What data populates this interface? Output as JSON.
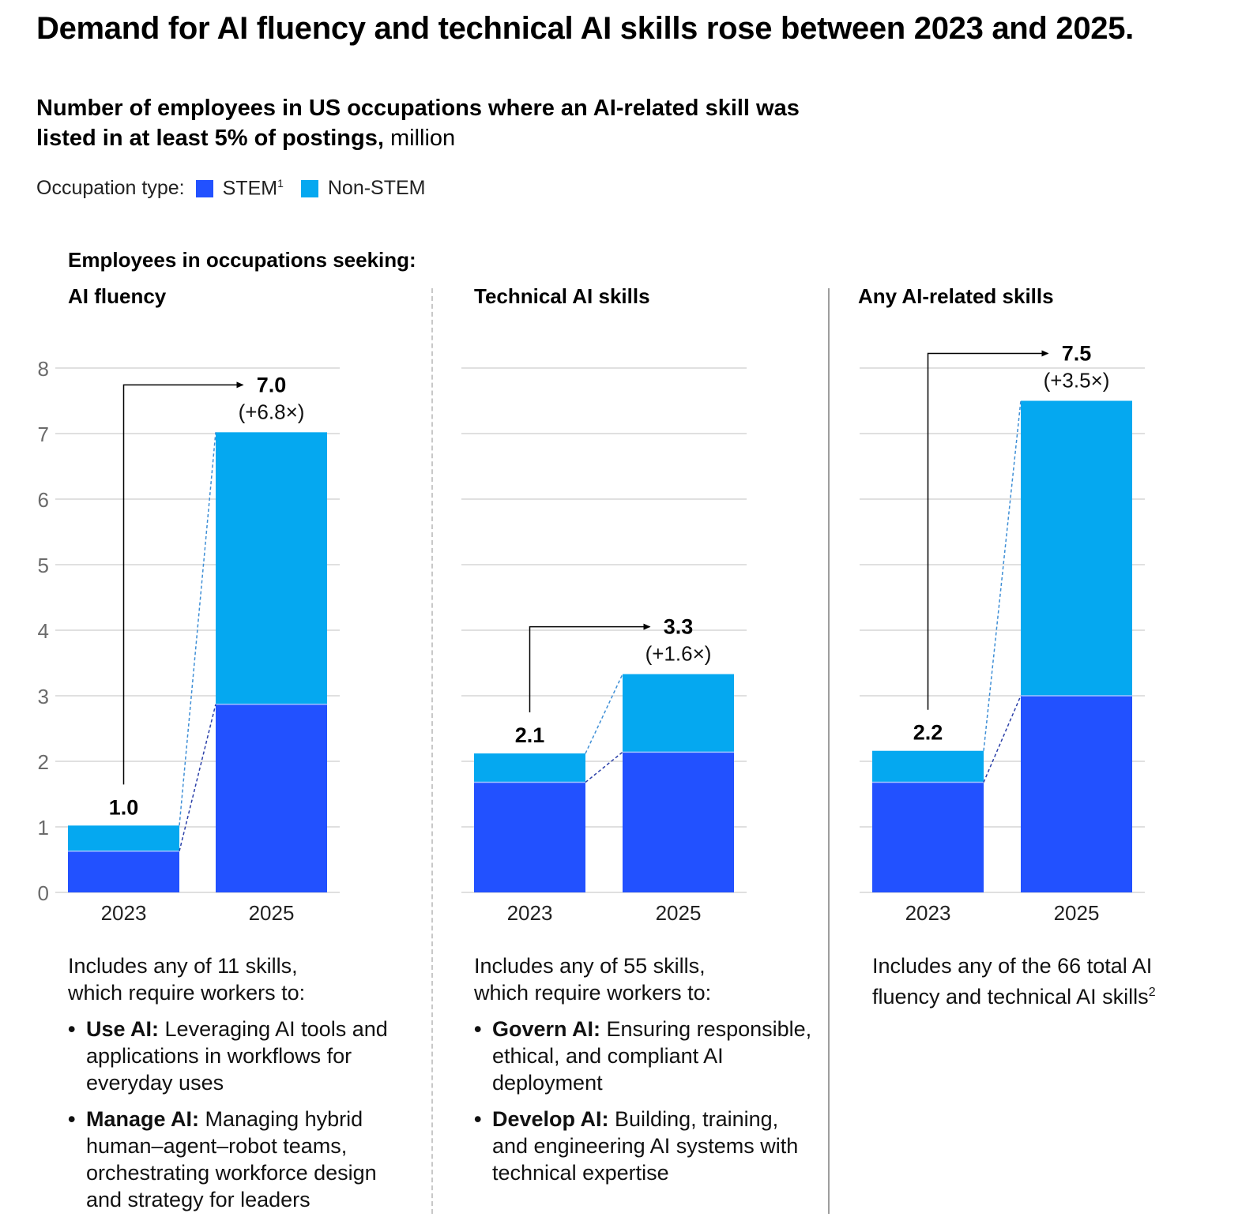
{
  "title": "Demand for AI fluency and technical AI skills rose between 2023 and 2025.",
  "subtitle": {
    "bold": "Number of employees in US occupations where an AI-related skill was listed in at least 5% of postings,",
    "unit": " million"
  },
  "legend": {
    "label": "Occupation type:",
    "items": [
      {
        "name": "STEM",
        "sup": "1",
        "color": "#2251FF"
      },
      {
        "name": "Non-STEM",
        "sup": "",
        "color": "#05A8F0"
      }
    ]
  },
  "section_label": "Employees in occupations seeking:",
  "panels": [
    {
      "title": "AI fluency",
      "note_intro": "Includes any of 11 skills, which require workers to:",
      "bullets": [
        {
          "bold": "Use AI:",
          "text": " Leveraging AI tools and applications in workflows for everyday uses"
        },
        {
          "bold": "Manage AI:",
          "text": " Managing hybrid human–agent–robot teams, orchestrating workforce design and strategy for leaders"
        }
      ]
    },
    {
      "title": "Technical AI skills",
      "note_intro": "Includes any of 55 skills, which require workers to:",
      "bullets": [
        {
          "bold": "Govern AI:",
          "text": " Ensuring responsible, ethical, and compliant AI deployment"
        },
        {
          "bold": "Develop AI:",
          "text": " Building, training, and engineering AI systems with technical expertise"
        }
      ]
    },
    {
      "title": "Any AI-related skills",
      "note_intro": "Includes any of the 66 total AI fluency and technical AI skills",
      "note_sup": "2",
      "bullets": []
    }
  ],
  "chart_data": {
    "type": "bar",
    "stacked": true,
    "title": "Number of employees in US occupations where an AI-related skill was listed in at least 5% of postings",
    "ylabel": "million",
    "ylim": [
      0,
      8
    ],
    "yticks": [
      0,
      1,
      2,
      3,
      4,
      5,
      6,
      7,
      8
    ],
    "grid": true,
    "legend_position": "top-left",
    "categories": [
      "2023",
      "2025"
    ],
    "panels": [
      {
        "name": "AI fluency",
        "series": [
          {
            "name": "STEM",
            "values": [
              0.63,
              2.87
            ]
          },
          {
            "name": "Non-STEM",
            "values": [
              0.39,
              4.15
            ]
          }
        ],
        "totals": [
          1.0,
          7.0
        ],
        "total_labels": [
          "1.0",
          "7.0"
        ],
        "growth_label": "(+6.8×)"
      },
      {
        "name": "Technical AI skills",
        "series": [
          {
            "name": "STEM",
            "values": [
              1.68,
              2.14
            ]
          },
          {
            "name": "Non-STEM",
            "values": [
              0.44,
              1.19
            ]
          }
        ],
        "totals": [
          2.1,
          3.3
        ],
        "total_labels": [
          "2.1",
          "3.3"
        ],
        "growth_label": "(+1.6×)"
      },
      {
        "name": "Any AI-related skills",
        "series": [
          {
            "name": "STEM",
            "values": [
              1.68,
              3.0
            ]
          },
          {
            "name": "Non-STEM",
            "values": [
              0.48,
              4.5
            ]
          }
        ],
        "totals": [
          2.2,
          7.5
        ],
        "total_labels": [
          "2.2",
          "7.5"
        ],
        "growth_label": "(+3.5×)"
      }
    ]
  }
}
